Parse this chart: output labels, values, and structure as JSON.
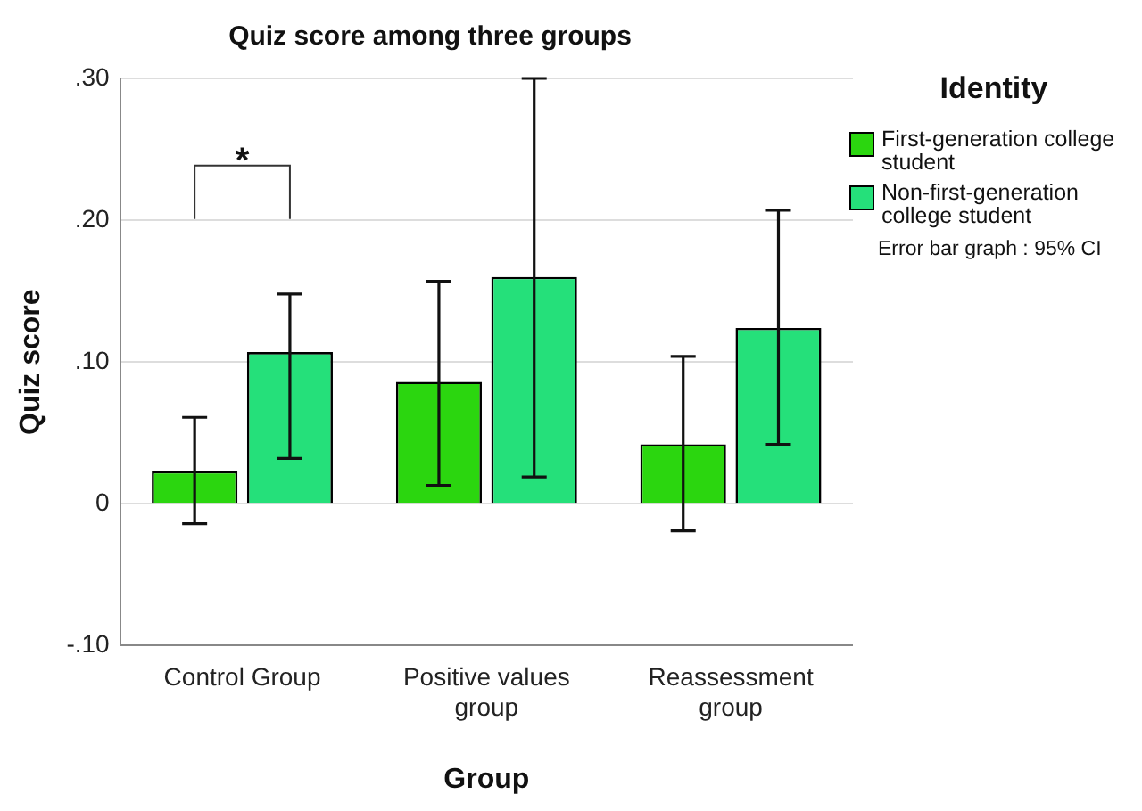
{
  "chart_data": {
    "type": "bar",
    "title": "Quiz score among three groups",
    "xlabel": "Group",
    "ylabel": "Quiz score",
    "legend_title": "Identity",
    "categories": [
      "Control Group",
      "Positive values group",
      "Reassessment group"
    ],
    "series": [
      {
        "name": "First-generation college student",
        "color": "#2bd60f",
        "values": [
          0.023,
          0.086,
          0.042
        ],
        "errors": [
          [
            -0.014,
            0.061
          ],
          [
            0.013,
            0.157
          ],
          [
            -0.019,
            0.104
          ]
        ]
      },
      {
        "name": "Non-first-generation college student",
        "color": "#25e07a",
        "values": [
          0.107,
          0.16,
          0.124
        ],
        "errors": [
          [
            0.032,
            0.148
          ],
          [
            0.019,
            0.3
          ],
          [
            0.042,
            0.207
          ]
        ]
      }
    ],
    "ylim": [
      -0.1,
      0.3
    ],
    "yticks": [
      {
        "value": -0.1,
        "label": "-.10"
      },
      {
        "value": 0,
        "label": "0"
      },
      {
        "value": 0.1,
        "label": ".10"
      },
      {
        "value": 0.2,
        "label": ".20"
      },
      {
        "value": 0.3,
        "label": ".30"
      }
    ],
    "grid": "y",
    "legend": "right",
    "annotations": [
      "*",
      "Error bar graph : 95% CI"
    ]
  }
}
